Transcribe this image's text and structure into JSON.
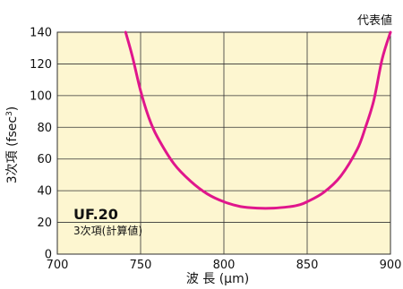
{
  "chart_data": {
    "type": "line",
    "corner_note": "代表値",
    "xlabel": "波 長 (μm)",
    "ylabel": "3次項 (fsec3)",
    "ylabel_main": "3次項 (fsec",
    "ylabel_sup": "3",
    "ylabel_end": ")",
    "xlim": [
      700,
      900
    ],
    "ylim": [
      0,
      140
    ],
    "x_ticks": [
      "700",
      "750",
      "800",
      "850",
      "900"
    ],
    "y_ticks": [
      "0",
      "20",
      "40",
      "60",
      "80",
      "100",
      "120",
      "140"
    ],
    "grid": true,
    "annotation": {
      "title": "UF.20",
      "subtitle": "3次項(計算値)"
    },
    "series": [
      {
        "color": "#e0168c",
        "x": [
          741,
          745,
          750,
          755,
          760,
          770,
          780,
          790,
          800,
          810,
          820,
          830,
          840,
          845,
          850,
          860,
          870,
          880,
          885,
          890,
          895,
          900
        ],
        "y": [
          140,
          125,
          103,
          86,
          74,
          57,
          46,
          38,
          33,
          30,
          29,
          29,
          30,
          31,
          33,
          39,
          49,
          66,
          80,
          97,
          123,
          140
        ]
      }
    ]
  },
  "colors": {
    "plot_bg": "#fdf6d0",
    "grid": "#333333",
    "curve": "#e0168c"
  }
}
